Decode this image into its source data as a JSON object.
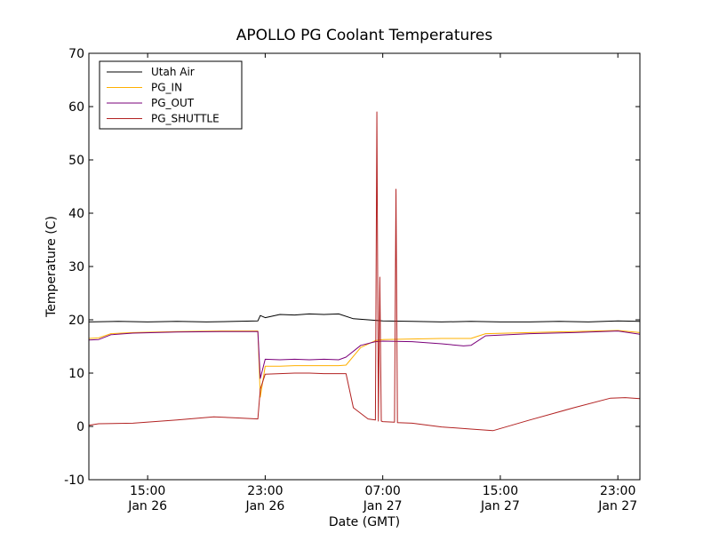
{
  "chart_data": {
    "type": "line",
    "title": "APOLLO PG Coolant Temperatures",
    "xlabel": "Date (GMT)",
    "ylabel": "Temperature (C)",
    "xlim": [
      "Jan 26 11:00",
      "Jan 28 00:30"
    ],
    "ylim": [
      -10,
      70
    ],
    "yticks": [
      -10,
      0,
      10,
      20,
      30,
      40,
      50,
      60,
      70
    ],
    "xticks": [
      {
        "x": "Jan 26 15:00",
        "time": "15:00",
        "date": "Jan 26"
      },
      {
        "x": "Jan 26 23:00",
        "time": "23:00",
        "date": "Jan 26"
      },
      {
        "x": "Jan 27 07:00",
        "time": "07:00",
        "date": "Jan 27"
      },
      {
        "x": "Jan 27 15:00",
        "time": "15:00",
        "date": "Jan 27"
      },
      {
        "x": "Jan 27 23:00",
        "time": "23:00",
        "date": "Jan 27"
      }
    ],
    "grid": false,
    "legend_position": "top-left",
    "series": [
      {
        "name": "Utah Air",
        "color": "#000000",
        "x": [
          "Jan 26 11:00",
          "Jan 26 13:00",
          "Jan 26 15:00",
          "Jan 26 17:00",
          "Jan 26 19:00",
          "Jan 26 21:00",
          "Jan 26 22:30",
          "Jan 26 22:40",
          "Jan 26 23:00",
          "Jan 27 00:00",
          "Jan 27 01:00",
          "Jan 27 02:00",
          "Jan 27 03:00",
          "Jan 27 04:00",
          "Jan 27 05:00",
          "Jan 27 06:00",
          "Jan 27 07:00",
          "Jan 27 09:00",
          "Jan 27 11:00",
          "Jan 27 13:00",
          "Jan 27 15:00",
          "Jan 27 17:00",
          "Jan 27 19:00",
          "Jan 27 21:00",
          "Jan 27 23:00",
          "Jan 28 00:30"
        ],
        "y": [
          19.6,
          19.7,
          19.6,
          19.7,
          19.6,
          19.7,
          19.8,
          20.8,
          20.4,
          21.0,
          20.9,
          21.1,
          21.0,
          21.1,
          20.2,
          20.0,
          19.8,
          19.7,
          19.6,
          19.7,
          19.6,
          19.6,
          19.7,
          19.6,
          19.8,
          19.7
        ]
      },
      {
        "name": "PG_IN",
        "color": "#ffb000",
        "x": [
          "Jan 26 11:00",
          "Jan 26 11:40",
          "Jan 26 12:30",
          "Jan 26 14:00",
          "Jan 26 17:00",
          "Jan 26 20:00",
          "Jan 26 22:30",
          "Jan 26 22:40",
          "Jan 26 23:00",
          "Jan 27 00:00",
          "Jan 27 01:00",
          "Jan 27 02:00",
          "Jan 27 03:00",
          "Jan 27 04:00",
          "Jan 27 04:30",
          "Jan 27 05:30",
          "Jan 27 06:30",
          "Jan 27 07:00",
          "Jan 27 09:00",
          "Jan 27 11:00",
          "Jan 27 13:00",
          "Jan 27 14:00",
          "Jan 27 17:00",
          "Jan 27 20:00",
          "Jan 27 23:00",
          "Jan 28 00:30"
        ],
        "y": [
          16.5,
          16.6,
          17.4,
          17.6,
          17.8,
          17.9,
          17.9,
          5.5,
          11.3,
          11.3,
          11.4,
          11.4,
          11.4,
          11.4,
          11.5,
          14.8,
          16.1,
          16.3,
          16.4,
          16.5,
          16.5,
          17.4,
          17.6,
          17.8,
          18.0,
          17.6
        ]
      },
      {
        "name": "PG_OUT",
        "color": "#7a007a",
        "x": [
          "Jan 26 11:00",
          "Jan 26 11:40",
          "Jan 26 12:30",
          "Jan 26 14:00",
          "Jan 26 17:00",
          "Jan 26 20:00",
          "Jan 26 22:30",
          "Jan 26 22:40",
          "Jan 26 23:00",
          "Jan 27 00:00",
          "Jan 27 01:00",
          "Jan 27 02:00",
          "Jan 27 03:00",
          "Jan 27 04:00",
          "Jan 27 04:30",
          "Jan 27 05:30",
          "Jan 27 06:30",
          "Jan 27 07:00",
          "Jan 27 09:00",
          "Jan 27 11:00",
          "Jan 27 12:30",
          "Jan 27 13:00",
          "Jan 27 14:00",
          "Jan 27 17:00",
          "Jan 27 20:00",
          "Jan 27 23:00",
          "Jan 28 00:30"
        ],
        "y": [
          16.2,
          16.3,
          17.2,
          17.5,
          17.7,
          17.8,
          17.8,
          9.0,
          12.6,
          12.5,
          12.6,
          12.5,
          12.6,
          12.5,
          13.0,
          15.2,
          15.9,
          16.0,
          15.9,
          15.5,
          15.1,
          15.2,
          17.0,
          17.4,
          17.6,
          17.9,
          17.3
        ]
      },
      {
        "name": "PG_SHUTTLE",
        "color": "#b22222",
        "x": [
          "Jan 26 11:00",
          "Jan 26 11:40",
          "Jan 26 14:00",
          "Jan 26 17:00",
          "Jan 26 19:30",
          "Jan 26 21:00",
          "Jan 26 22:30",
          "Jan 26 22:40",
          "Jan 26 23:00",
          "Jan 27 00:00",
          "Jan 27 01:00",
          "Jan 27 02:00",
          "Jan 27 03:00",
          "Jan 27 04:30",
          "Jan 27 05:00",
          "Jan 27 06:00",
          "Jan 27 06:30",
          "Jan 27 06:36",
          "Jan 27 06:42",
          "Jan 27 06:48",
          "Jan 27 06:54",
          "Jan 27 07:00",
          "Jan 27 07:48",
          "Jan 27 07:54",
          "Jan 27 08:00",
          "Jan 27 09:00",
          "Jan 27 11:00",
          "Jan 27 13:00",
          "Jan 27 14:30",
          "Jan 27 17:00",
          "Jan 27 20:00",
          "Jan 27 22:30",
          "Jan 27 23:30",
          "Jan 28 00:30"
        ],
        "y": [
          0.2,
          0.5,
          0.6,
          1.2,
          1.8,
          1.6,
          1.4,
          7.0,
          9.8,
          9.9,
          10.0,
          10.0,
          9.9,
          9.9,
          3.5,
          1.4,
          1.2,
          59.0,
          1.0,
          28.0,
          1.0,
          0.9,
          0.8,
          44.5,
          0.7,
          0.6,
          -0.1,
          -0.5,
          -0.8,
          1.2,
          3.5,
          5.3,
          5.4,
          5.2
        ]
      }
    ]
  }
}
